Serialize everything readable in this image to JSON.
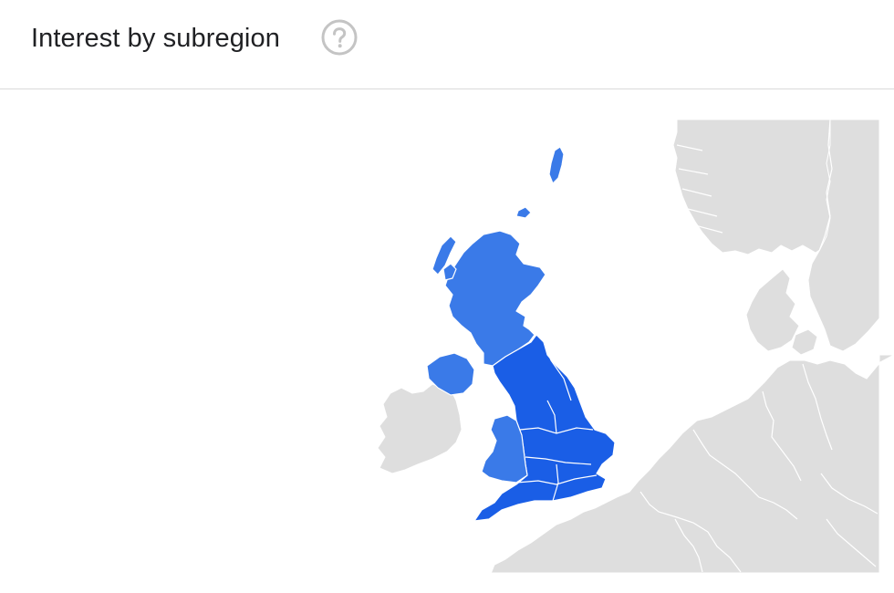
{
  "header": {
    "title": "Interest by subregion",
    "help_icon": "help-circle-icon"
  },
  "map": {
    "subregions": [
      {
        "name": "England",
        "level": "high"
      },
      {
        "name": "Scotland",
        "level": "medium"
      },
      {
        "name": "Wales",
        "level": "medium"
      },
      {
        "name": "Northern Ireland",
        "level": "medium"
      }
    ],
    "colors": {
      "high": "#1a5ee6",
      "medium": "#3a7ae8",
      "context": "#dedede",
      "border": "#ffffff"
    }
  }
}
